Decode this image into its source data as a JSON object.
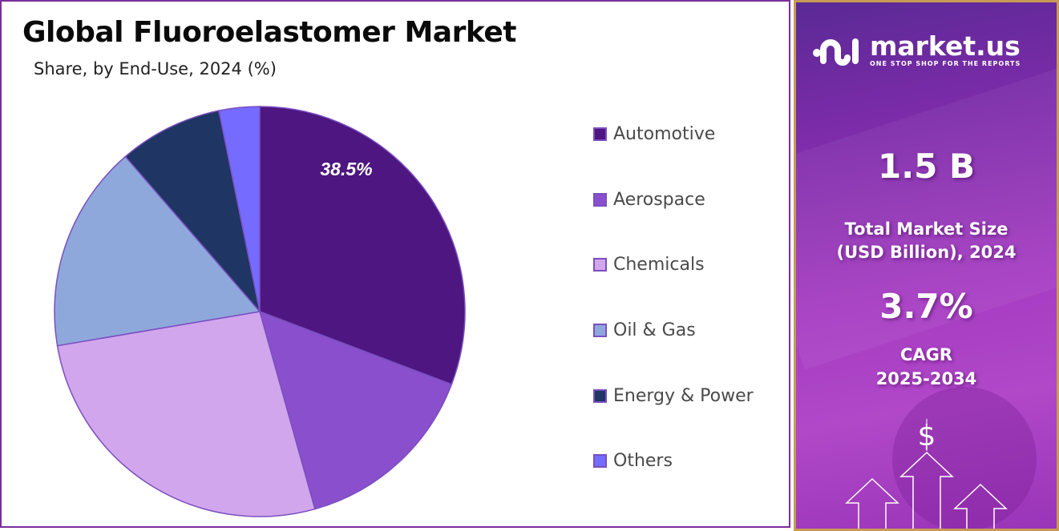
{
  "header": {
    "title": "Global Fluoroelastomer Market",
    "subtitle": "Share, by End-Use, 2024 (%)"
  },
  "chart_data": {
    "type": "pie",
    "title": "Global Fluoroelastomer Market",
    "subtitle": "Share, by End-Use, 2024 (%)",
    "categories": [
      "Automotive",
      "Aerospace",
      "Chemicals",
      "Oil & Gas",
      "Energy & Power",
      "Others"
    ],
    "values": [
      38.5,
      15.1,
      26.8,
      16.4,
      8.0,
      3.2
    ],
    "labeled_values": {
      "Automotive": 38.5
    },
    "colors": [
      "#4e1680",
      "#8a4fcc",
      "#d2a6ec",
      "#8fa8dc",
      "#1f3563",
      "#756cff"
    ],
    "legend_position": "right"
  },
  "pie": {
    "label": "38.5%"
  },
  "legend": {
    "items": [
      {
        "label": "Automotive",
        "color": "#4e1680"
      },
      {
        "label": "Aerospace",
        "color": "#8a4fcc"
      },
      {
        "label": "Chemicals",
        "color": "#d2a6ec"
      },
      {
        "label": "Oil & Gas",
        "color": "#8fa8dc"
      },
      {
        "label": "Energy & Power",
        "color": "#1f3563"
      },
      {
        "label": "Others",
        "color": "#756cff"
      }
    ]
  },
  "sidebar": {
    "brand": "market.us",
    "tagline": "ONE STOP SHOP FOR THE REPORTS",
    "market_size_value": "1.5 B",
    "market_size_label_1": "Total Market Size",
    "market_size_label_2": "(USD Billion), 2024",
    "cagr_value": "3.7%",
    "cagr_label_1": "CAGR",
    "cagr_label_2": "2025-2034",
    "dollar_symbol": "$"
  }
}
